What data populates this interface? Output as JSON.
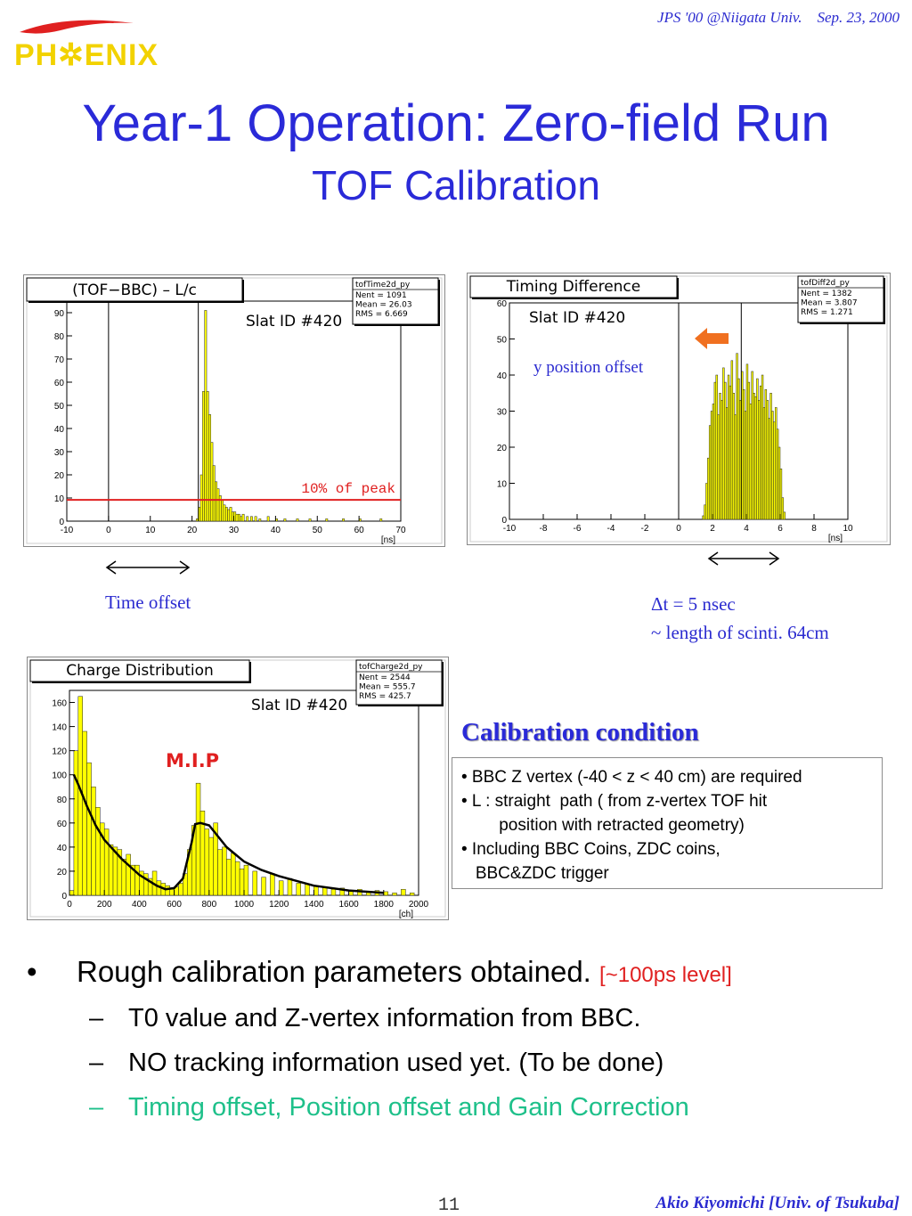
{
  "header": {
    "conference": "JPS '00 @Niigata Univ.    Sep. 23, 2000",
    "logo_text": "PH✲ENIX",
    "title": "Year-1 Operation: Zero-field Run",
    "subtitle": "TOF Calibration"
  },
  "annotations": {
    "time_offset": "Time offset",
    "y_position_offset": "y position offset",
    "dt_line1": "Δt = 5 nsec",
    "dt_line2": "~ length of scinti. 64cm"
  },
  "calibration": {
    "title": "Calibration condition",
    "lines": [
      "• BBC Z vertex (-40 < z < 40 cm) are required",
      "• L : straight  path ( from z-vertex TOF hit",
      "        position with retracted geometry)",
      "• Including BBC Coins, ZDC coins,",
      "   BBC&ZDC trigger"
    ]
  },
  "bullets": {
    "main": "Rough calibration parameters obtained.",
    "main_tag": "[~100ps level]",
    "subs": [
      "T0 value and Z-vertex information from BBC.",
      "NO tracking information used yet. (To be done)",
      "Timing offset, Position offset and Gain Correction"
    ],
    "dot": "•",
    "dash": "–"
  },
  "footer": {
    "page": "11",
    "author": "Akio Kiyomichi [Univ. of Tsukuba]"
  },
  "colors": {
    "accent": "#2a2ad8",
    "hist_fill": "#ffff00",
    "peak_line": "#e02020",
    "arrow": "#f07020",
    "sub_highlight": "#1ec08a"
  },
  "chart_data": [
    {
      "type": "bar",
      "title": "(TOF−BBC) – L/c",
      "label": "Slat ID #420",
      "stats": {
        "name": "tofTime2d_py",
        "lines": [
          "Nent = 1091",
          "Mean  =  26.03",
          "RMS   =  6.669"
        ]
      },
      "xlabel": "[ns]",
      "xlim": [
        -10,
        70
      ],
      "ylim": [
        0,
        95
      ],
      "xticks": [
        -10,
        0,
        10,
        20,
        30,
        40,
        50,
        60,
        70
      ],
      "yticks": [
        0,
        10,
        20,
        30,
        40,
        50,
        60,
        70,
        80,
        90
      ],
      "vline_x": [
        0,
        21.5
      ],
      "hline": {
        "y": 9.2,
        "label": "10% of peak"
      },
      "bin_width": 0.5,
      "x": [
        21.0,
        21.5,
        22.0,
        22.5,
        23.0,
        23.5,
        24.0,
        24.5,
        25.0,
        25.5,
        26.0,
        26.5,
        27.0,
        27.5,
        28.0,
        28.5,
        29.0,
        29.5,
        30.0,
        30.5,
        31.0,
        31.5,
        32.0,
        33.0,
        34.0,
        35.0,
        36.0,
        38.0,
        40.0,
        42.0,
        45.0,
        48.0,
        52.0,
        56.0,
        60.0,
        65.0
      ],
      "values": [
        1,
        6,
        20,
        56,
        91,
        56,
        46,
        34,
        24,
        17,
        14,
        11,
        9,
        7,
        6,
        5,
        6,
        4,
        4,
        3,
        3,
        2,
        3,
        2,
        2,
        2,
        1,
        2,
        1,
        1,
        1,
        1,
        1,
        1,
        1,
        1
      ]
    },
    {
      "type": "bar",
      "title": "Timing Difference",
      "label": "Slat ID #420",
      "stats": {
        "name": "tofDiff2d_py",
        "lines": [
          "Nent = 1382",
          "Mean  =  3.807",
          "RMS   =  1.271"
        ]
      },
      "xlabel": "[ns]",
      "xlim": [
        -10,
        10
      ],
      "ylim": [
        0,
        60
      ],
      "xticks": [
        -10,
        -8,
        -6,
        -4,
        -2,
        0,
        2,
        4,
        6,
        8,
        10
      ],
      "yticks": [
        0,
        10,
        20,
        30,
        40,
        50,
        60
      ],
      "vline_x": [
        0,
        3.7
      ],
      "bin_width": 0.1,
      "x": [
        1.4,
        1.5,
        1.6,
        1.7,
        1.8,
        1.9,
        2.0,
        2.1,
        2.2,
        2.3,
        2.4,
        2.5,
        2.6,
        2.7,
        2.8,
        2.9,
        3.0,
        3.1,
        3.2,
        3.3,
        3.4,
        3.5,
        3.6,
        3.7,
        3.8,
        3.9,
        4.0,
        4.1,
        4.2,
        4.3,
        4.4,
        4.5,
        4.6,
        4.7,
        4.8,
        4.9,
        5.0,
        5.1,
        5.2,
        5.3,
        5.4,
        5.5,
        5.6,
        5.7,
        5.8,
        5.9,
        6.0,
        6.1,
        6.2
      ],
      "values": [
        1,
        4,
        10,
        17,
        26,
        30,
        32,
        38,
        40,
        29,
        35,
        33,
        42,
        38,
        31,
        40,
        37,
        44,
        35,
        29,
        46,
        39,
        33,
        41,
        36,
        30,
        43,
        38,
        32,
        41,
        35,
        34,
        39,
        33,
        37,
        40,
        31,
        36,
        33,
        28,
        35,
        30,
        27,
        31,
        25,
        20,
        14,
        6,
        2
      ]
    },
    {
      "type": "bar",
      "title": "Charge Distribution",
      "label": "Slat ID #420",
      "annotation": "M.I.P",
      "stats": {
        "name": "tofCharge2d_py",
        "lines": [
          "Nent = 2544",
          "Mean  =  555.7",
          "RMS   =  425.7"
        ]
      },
      "xlabel": "[ch]",
      "xlim": [
        0,
        2000
      ],
      "ylim": [
        0,
        170
      ],
      "xticks": [
        0,
        200,
        400,
        600,
        800,
        1000,
        1200,
        1400,
        1600,
        1800,
        2000
      ],
      "yticks": [
        0,
        20,
        40,
        60,
        80,
        100,
        120,
        140,
        160
      ],
      "bin_width": 25,
      "x": [
        0,
        25,
        50,
        75,
        100,
        125,
        150,
        175,
        200,
        225,
        250,
        275,
        300,
        325,
        350,
        375,
        400,
        425,
        450,
        475,
        500,
        525,
        550,
        575,
        600,
        625,
        650,
        675,
        700,
        725,
        750,
        775,
        800,
        825,
        850,
        875,
        900,
        925,
        950,
        975,
        1000,
        1050,
        1100,
        1150,
        1200,
        1250,
        1300,
        1350,
        1400,
        1450,
        1500,
        1550,
        1600,
        1650,
        1700,
        1750,
        1800,
        1850,
        1900,
        1950
      ],
      "values": [
        4,
        120,
        165,
        136,
        110,
        90,
        73,
        60,
        55,
        42,
        40,
        38,
        30,
        34,
        25,
        25,
        20,
        18,
        14,
        20,
        12,
        10,
        8,
        5,
        7,
        10,
        18,
        38,
        58,
        93,
        70,
        55,
        48,
        60,
        38,
        40,
        30,
        35,
        28,
        22,
        25,
        20,
        15,
        18,
        12,
        14,
        10,
        9,
        8,
        7,
        5,
        6,
        4,
        5,
        3,
        4,
        3,
        2,
        5,
        2
      ],
      "fit": {
        "x": [
          25,
          50,
          100,
          150,
          200,
          300,
          400,
          500,
          550,
          600,
          650,
          700,
          720,
          750,
          800,
          900,
          1000,
          1100,
          1200,
          1400,
          1600,
          1800
        ],
        "y": [
          100,
          92,
          74,
          58,
          46,
          30,
          17,
          8,
          5,
          6,
          14,
          44,
          59,
          60,
          58,
          40,
          28,
          21,
          16,
          8,
          4,
          2
        ]
      }
    }
  ]
}
